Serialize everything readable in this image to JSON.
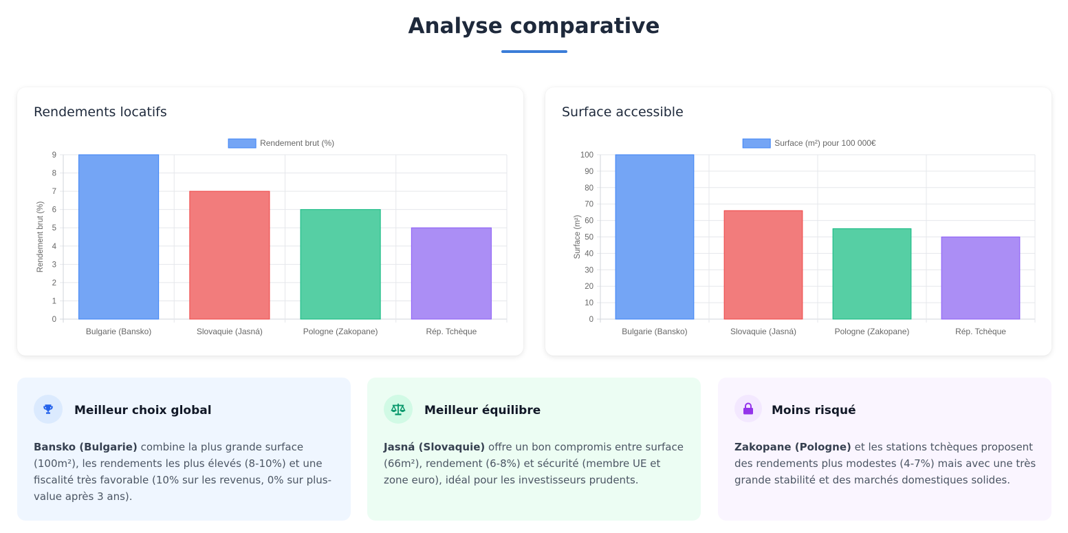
{
  "page": {
    "title": "Analyse comparative",
    "accent": "#3b7dd8"
  },
  "charts": {
    "rendements": {
      "title": "Rendements locatifs"
    },
    "surface": {
      "title": "Surface accessible"
    }
  },
  "chart_data": [
    {
      "type": "bar",
      "title": "Rendements locatifs",
      "categories": [
        "Bulgarie (Bansko)",
        "Slovaquie (Jasná)",
        "Pologne (Zakopane)",
        "Rép. Tchèque"
      ],
      "series": [
        {
          "name": "Rendement brut (%)",
          "values": [
            9,
            7,
            6,
            5
          ]
        }
      ],
      "xlabel": "",
      "ylabel": "Rendement brut (%)",
      "ylim": [
        0,
        9
      ],
      "yticks": [
        0,
        1,
        2,
        3,
        4,
        5,
        6,
        7,
        8,
        9
      ],
      "grid": true,
      "legend": "top-center",
      "bar_colors": [
        "#74a5f5",
        "#f27c7c",
        "#56cfa4",
        "#ab8ef5"
      ],
      "bar_borders": [
        "#3b82f6",
        "#ef4444",
        "#10b981",
        "#8b5cf6"
      ]
    },
    {
      "type": "bar",
      "title": "Surface accessible",
      "categories": [
        "Bulgarie (Bansko)",
        "Slovaquie (Jasná)",
        "Pologne (Zakopane)",
        "Rép. Tchèque"
      ],
      "series": [
        {
          "name": "Surface (m²) pour 100 000€",
          "values": [
            100,
            66,
            55,
            50
          ]
        }
      ],
      "xlabel": "",
      "ylabel": "Surface (m²)",
      "ylim": [
        0,
        100
      ],
      "yticks": [
        0,
        10,
        20,
        30,
        40,
        50,
        60,
        70,
        80,
        90,
        100
      ],
      "grid": true,
      "legend": "top-center",
      "bar_colors": [
        "#74a5f5",
        "#f27c7c",
        "#56cfa4",
        "#ab8ef5"
      ],
      "bar_borders": [
        "#3b82f6",
        "#ef4444",
        "#10b981",
        "#8b5cf6"
      ]
    }
  ],
  "cards": [
    {
      "icon": "trophy-icon",
      "title": "Meilleur choix global",
      "bold": "Bansko (Bulgarie)",
      "text": " combine la plus grande surface (100m²), les rendements les plus élevés (8-10%) et une fiscalité très favorable (10% sur les revenus, 0% sur plus-value après 3 ans).",
      "bg": "#eff6ff",
      "icon_bg": "#dbeafe",
      "icon_color": "#2563eb"
    },
    {
      "icon": "balance-scale-icon",
      "title": "Meilleur équilibre",
      "bold": "Jasná (Slovaquie)",
      "text": " offre un bon compromis entre surface (66m²), rendement (6-8%) et sécurité (membre UE et zone euro), idéal pour les investisseurs prudents.",
      "bg": "#ecfdf3",
      "icon_bg": "#d1fae5",
      "icon_color": "#059669"
    },
    {
      "icon": "lock-icon",
      "title": "Moins risqué",
      "bold": "Zakopane (Pologne)",
      "text": " et les stations tchèques proposent des rendements plus modestes (4-7%) mais avec une très grande stabilité et des marchés domestiques solides.",
      "bg": "#faf5ff",
      "icon_bg": "#f3e8ff",
      "icon_color": "#9333ea"
    }
  ]
}
